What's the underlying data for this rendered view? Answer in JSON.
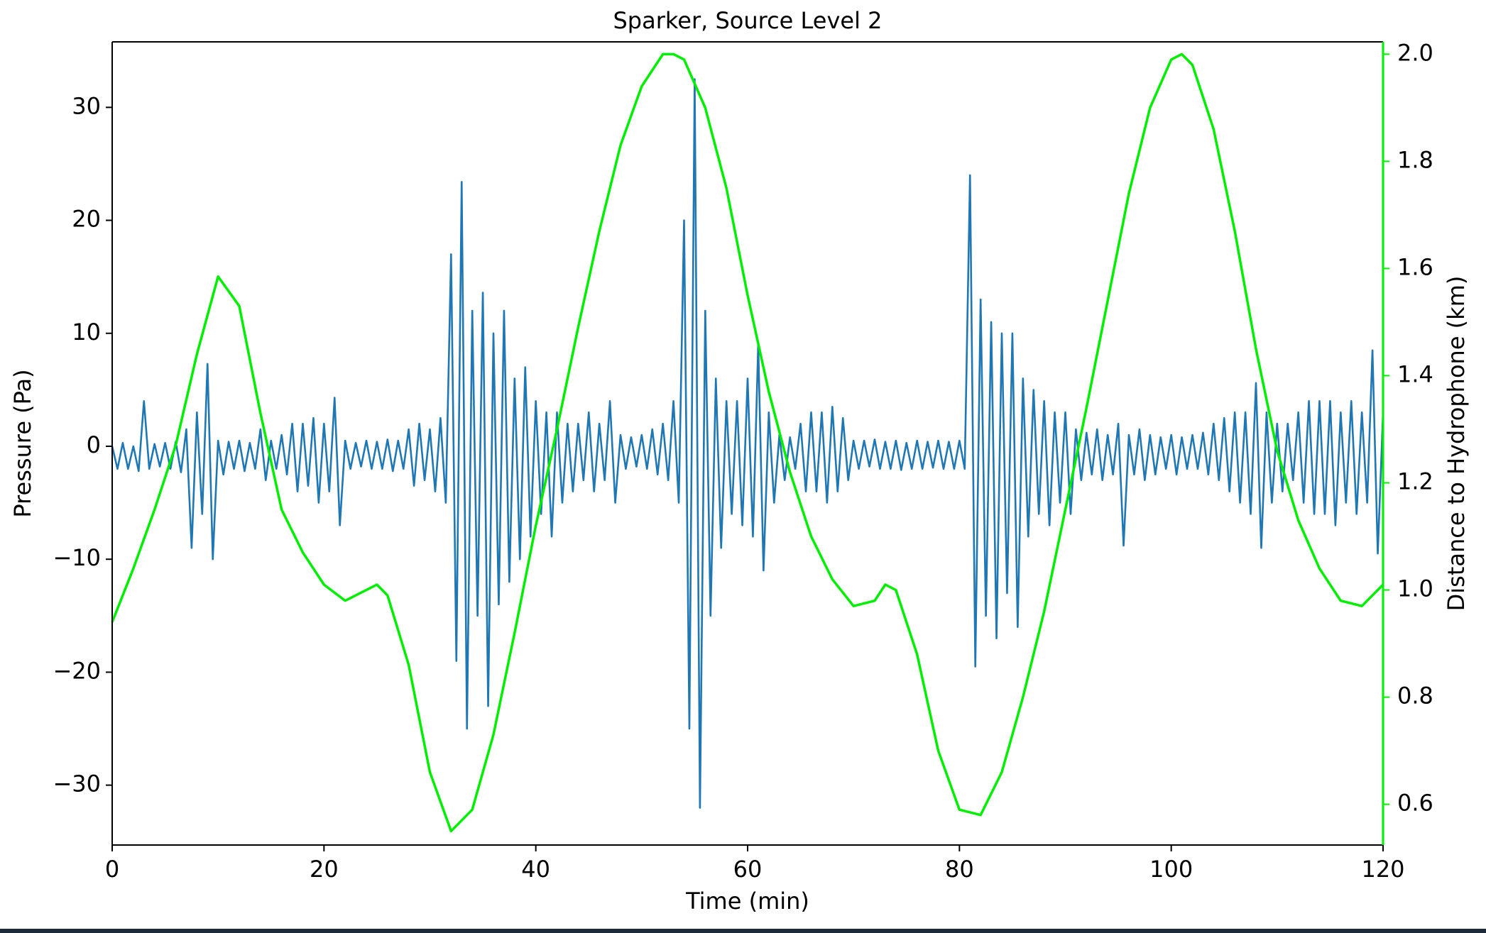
{
  "chart_data": {
    "type": "line",
    "title": "Sparker, Source Level 2",
    "x_label": "Time (min)",
    "y_label": "Pressure (Pa)",
    "y2_label": "Distance to Hydrophone (km)",
    "xlim": [
      0,
      120
    ],
    "xticks": [
      0,
      20,
      40,
      60,
      80,
      100,
      120
    ],
    "ylim": [
      -35.3,
      35.8
    ],
    "yticks": [
      {
        "value": -30,
        "label": "−30"
      },
      {
        "value": -20,
        "label": "−20"
      },
      {
        "value": -10,
        "label": "−10"
      },
      0,
      10,
      20,
      30
    ],
    "y2lim": [
      0.524,
      2.023
    ],
    "y2ticks": [
      0.6,
      0.8,
      {
        "value": 1,
        "label": "1.0"
      },
      1.2,
      1.4,
      1.6,
      1.8,
      {
        "value": 2,
        "label": "2.0"
      }
    ],
    "y2_color": "#00ee00",
    "series": [
      {
        "color": "#1f77b4",
        "x": [
          0,
          0.5,
          1,
          1.5,
          2,
          2.5,
          3,
          3.5,
          4,
          4.5,
          5,
          5.5,
          6,
          6.5,
          7,
          7.5,
          8,
          8.5,
          9,
          9.5,
          10,
          10.5,
          11,
          11.5,
          12,
          12.5,
          13,
          13.5,
          14,
          14.5,
          15,
          15.5,
          16,
          16.5,
          17,
          17.5,
          18,
          18.5,
          19,
          19.5,
          20,
          20.5,
          21,
          21.5,
          22,
          22.5,
          23,
          23.5,
          24,
          24.5,
          25,
          25.5,
          26,
          26.5,
          27,
          27.5,
          28,
          28.5,
          29,
          29.5,
          30,
          30.5,
          31,
          31.5,
          32,
          32.5,
          33,
          33.5,
          34,
          34.5,
          35,
          35.5,
          36,
          36.5,
          37,
          37.5,
          38,
          38.5,
          39,
          39.5,
          40,
          40.5,
          41,
          41.5,
          42,
          42.5,
          43,
          43.5,
          44,
          44.5,
          45,
          45.5,
          46,
          46.5,
          47,
          47.5,
          48,
          48.5,
          49,
          49.5,
          50,
          50.5,
          51,
          51.5,
          52,
          52.5,
          53,
          53.5,
          54,
          54.5,
          55,
          55.5,
          56,
          56.5,
          57,
          57.5,
          58,
          58.5,
          59,
          59.5,
          60,
          60.5,
          61,
          61.5,
          62,
          62.5,
          63,
          63.5,
          64,
          64.5,
          65,
          65.5,
          66,
          66.5,
          67,
          67.5,
          68,
          68.5,
          69,
          69.5,
          70,
          70.5,
          71,
          71.5,
          72,
          72.5,
          73,
          73.5,
          74,
          74.5,
          75,
          75.5,
          76,
          76.5,
          77,
          77.5,
          78,
          78.5,
          79,
          79.5,
          80,
          80.5,
          81,
          81.5,
          82,
          82.5,
          83,
          83.5,
          84,
          84.5,
          85,
          85.5,
          86,
          86.5,
          87,
          87.5,
          88,
          88.5,
          89,
          89.5,
          90,
          90.5,
          91,
          91.5,
          92,
          92.5,
          93,
          93.5,
          94,
          94.5,
          95,
          95.5,
          96,
          96.5,
          97,
          97.5,
          98,
          98.5,
          99,
          99.5,
          100,
          100.5,
          101,
          101.5,
          102,
          102.5,
          103,
          103.5,
          104,
          104.5,
          105,
          105.5,
          106,
          106.5,
          107,
          107.5,
          108,
          108.5,
          109,
          109.5,
          110,
          110.5,
          111,
          111.5,
          112,
          112.5,
          113,
          113.5,
          114,
          114.5,
          115,
          115.5,
          116,
          116.5,
          117,
          117.5,
          118,
          118.5,
          119,
          119.5,
          120
        ],
        "values": [
          0,
          -2,
          0.3,
          -2,
          0,
          -2.2,
          4,
          -2,
          0.2,
          -1.8,
          0.3,
          -2,
          0.4,
          -2.3,
          1.5,
          -9,
          3,
          -6,
          7.3,
          -10,
          0.5,
          -2.5,
          0.4,
          -2,
          0.5,
          -2.2,
          0.3,
          -2,
          1.5,
          -3,
          0.5,
          -2,
          1,
          -2.5,
          2,
          -4,
          2,
          -3.5,
          2.5,
          -5,
          2,
          -4,
          4.3,
          -7,
          0.5,
          -2,
          0.3,
          -1.8,
          0.5,
          -2,
          0.4,
          -2,
          0.6,
          -2.2,
          0.5,
          -2,
          1.5,
          -3.5,
          2,
          -3,
          1.5,
          -4,
          2.5,
          -5,
          17,
          -19,
          23.4,
          -25,
          12,
          -15,
          13.6,
          -23,
          10,
          -14,
          12,
          -12,
          6,
          -10,
          7,
          -8,
          4,
          -6,
          3,
          -8,
          3,
          -5,
          2,
          -4,
          2,
          -3,
          3,
          -4,
          2,
          -3,
          4,
          -5,
          1,
          -2,
          0.8,
          -1.8,
          1,
          -2,
          1.5,
          -2.5,
          2,
          -3,
          4,
          -5,
          20,
          -25,
          32.5,
          -32,
          12,
          -15,
          6,
          -9,
          4,
          -6,
          4,
          -7,
          6,
          -8,
          9,
          -11,
          3,
          -5,
          1,
          -3,
          0.8,
          -2,
          2,
          -4,
          3,
          -4,
          3,
          -5,
          3.5,
          -4,
          2.5,
          -3,
          0.5,
          -2,
          0.5,
          -1.8,
          0.6,
          -2,
          0.4,
          -2,
          0.5,
          -2.1,
          0.3,
          -2,
          0.5,
          -2,
          0.4,
          -1.9,
          0.5,
          -2,
          0.4,
          -2,
          0.5,
          -2,
          24,
          -19.5,
          13,
          -15,
          11,
          -17,
          10,
          -13,
          10,
          -16,
          6,
          -8,
          5,
          -6,
          4,
          -7,
          3,
          -5,
          3,
          -6,
          1.5,
          -3,
          1.2,
          -2.5,
          1.5,
          -3,
          1,
          -2.5,
          2,
          -8.8,
          1,
          -2.5,
          1.5,
          -3,
          1,
          -2.5,
          0.8,
          -2,
          1,
          -2.5,
          0.8,
          -2,
          1,
          -2,
          1.2,
          -2.5,
          2,
          -3,
          2.5,
          -4,
          3,
          -5,
          3,
          -6,
          5.6,
          -9,
          3,
          -5,
          2,
          -4,
          2,
          -3,
          3,
          -5,
          4,
          -6,
          4,
          -6,
          4,
          -7,
          3,
          -5,
          4,
          -6,
          3,
          -5,
          8.5,
          -9.5,
          3
        ]
      },
      {
        "color": "#00ee00",
        "axis": "y2",
        "x": [
          0,
          2,
          4,
          6,
          8,
          10,
          12,
          14,
          16,
          18,
          20,
          22,
          24,
          25,
          26,
          28,
          30,
          32,
          34,
          36,
          38,
          40,
          42,
          44,
          46,
          48,
          50,
          52,
          53,
          54,
          56,
          58,
          60,
          62,
          64,
          66,
          68,
          70,
          72,
          73,
          74,
          76,
          78,
          80,
          82,
          84,
          86,
          88,
          90,
          92,
          94,
          96,
          98,
          100,
          101,
          102,
          104,
          106,
          108,
          110,
          112,
          114,
          116,
          118,
          120
        ],
        "values": [
          0.94,
          1.04,
          1.15,
          1.27,
          1.44,
          1.585,
          1.53,
          1.33,
          1.15,
          1.07,
          1.01,
          0.98,
          1.0,
          1.01,
          0.99,
          0.86,
          0.66,
          0.55,
          0.59,
          0.73,
          0.92,
          1.12,
          1.3,
          1.49,
          1.67,
          1.83,
          1.94,
          2.0,
          2.0,
          1.99,
          1.9,
          1.75,
          1.55,
          1.37,
          1.22,
          1.1,
          1.02,
          0.97,
          0.98,
          1.01,
          1.0,
          0.88,
          0.7,
          0.59,
          0.58,
          0.66,
          0.8,
          0.96,
          1.15,
          1.34,
          1.54,
          1.74,
          1.9,
          1.99,
          2.0,
          1.98,
          1.86,
          1.67,
          1.45,
          1.26,
          1.13,
          1.04,
          0.98,
          0.97,
          1.01
        ]
      }
    ]
  }
}
